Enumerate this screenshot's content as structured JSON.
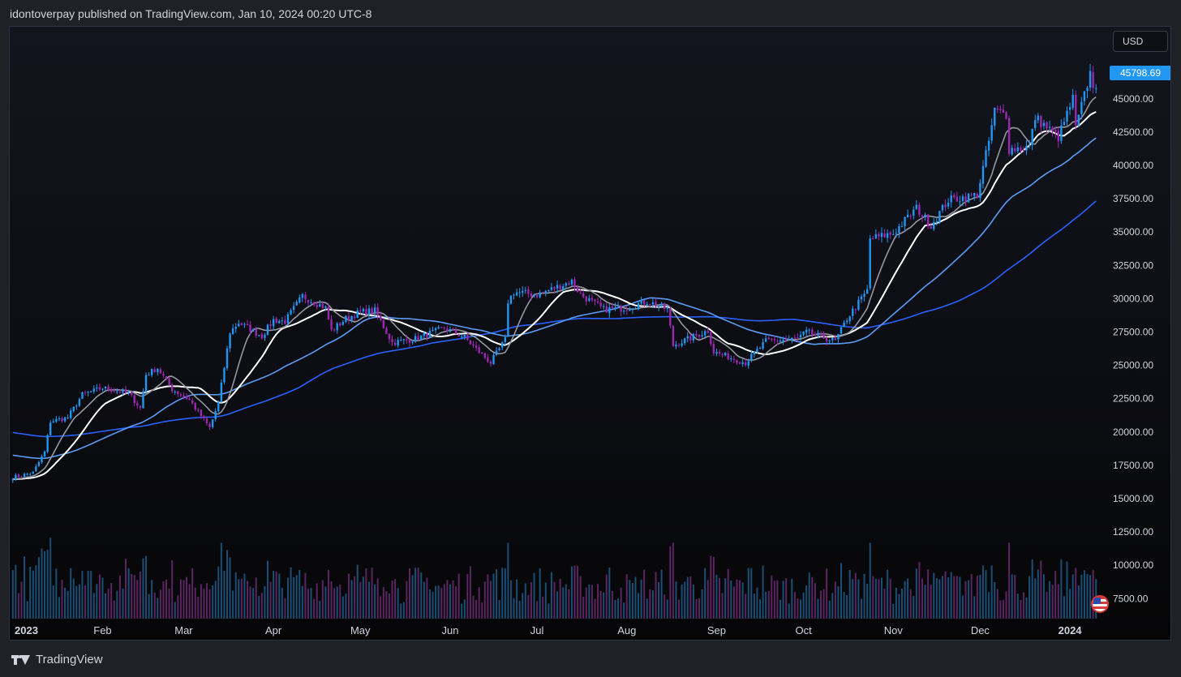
{
  "header": {
    "title": "idontoverpay published on TradingView.com, Jan 10, 2024 00:20 UTC-8"
  },
  "currency": "USD",
  "last_price": "45798.69",
  "footer": {
    "brand": "TradingView",
    "logo_icon": "tradingview-logo-icon"
  },
  "flag_icon": "us-flag-icon",
  "colors": {
    "up": "#2196f3",
    "down": "#9c27b0",
    "ma10": "#9598a1",
    "ma20": "#ffffff",
    "ma50": "#5b9cf6",
    "ma100": "#2962ff"
  },
  "chart_data": {
    "type": "candlestick",
    "x_axis": {
      "start_date": "2023-01-01",
      "end_date": "2024-01-10",
      "ticks": [
        {
          "label": "2023",
          "date": "2023-01-01",
          "bold": true
        },
        {
          "label": "Feb",
          "date": "2023-02-01"
        },
        {
          "label": "Mar",
          "date": "2023-03-01"
        },
        {
          "label": "Apr",
          "date": "2023-04-01"
        },
        {
          "label": "May",
          "date": "2023-05-01"
        },
        {
          "label": "Jun",
          "date": "2023-06-01"
        },
        {
          "label": "Jul",
          "date": "2023-07-01"
        },
        {
          "label": "Aug",
          "date": "2023-08-01"
        },
        {
          "label": "Sep",
          "date": "2023-09-01"
        },
        {
          "label": "Oct",
          "date": "2023-10-01"
        },
        {
          "label": "Nov",
          "date": "2023-11-01"
        },
        {
          "label": "Dec",
          "date": "2023-12-01"
        },
        {
          "label": "2024",
          "date": "2024-01-01",
          "bold": true
        }
      ]
    },
    "y_axis": {
      "min": 6000,
      "max": 50400,
      "ticks": [
        "7500.00",
        "10000.00",
        "12500.00",
        "15000.00",
        "17500.00",
        "20000.00",
        "22500.00",
        "25000.00",
        "27500.00",
        "30000.00",
        "32500.00",
        "35000.00",
        "37500.00",
        "40000.00",
        "42500.00",
        "45000.00"
      ]
    },
    "price_path": [
      [
        "2023-01-01",
        16600
      ],
      [
        "2023-01-08",
        16950
      ],
      [
        "2023-01-12",
        18500
      ],
      [
        "2023-01-14",
        20800
      ],
      [
        "2023-01-20",
        21100
      ],
      [
        "2023-01-25",
        22800
      ],
      [
        "2023-02-01",
        23300
      ],
      [
        "2023-02-10",
        22900
      ],
      [
        "2023-02-14",
        21800
      ],
      [
        "2023-02-16",
        24300
      ],
      [
        "2023-02-20",
        24800
      ],
      [
        "2023-02-25",
        23200
      ],
      [
        "2023-03-03",
        22400
      ],
      [
        "2023-03-10",
        20300
      ],
      [
        "2023-03-13",
        22200
      ],
      [
        "2023-03-17",
        27500
      ],
      [
        "2023-03-20",
        28200
      ],
      [
        "2023-03-28",
        27200
      ],
      [
        "2023-04-01",
        28400
      ],
      [
        "2023-04-05",
        28300
      ],
      [
        "2023-04-11",
        30200
      ],
      [
        "2023-04-19",
        29300
      ],
      [
        "2023-04-21",
        27600
      ],
      [
        "2023-04-26",
        28500
      ],
      [
        "2023-05-01",
        29000
      ],
      [
        "2023-05-06",
        29100
      ],
      [
        "2023-05-12",
        26700
      ],
      [
        "2023-05-20",
        27000
      ],
      [
        "2023-05-30",
        27800
      ],
      [
        "2023-06-06",
        27100
      ],
      [
        "2023-06-10",
        26200
      ],
      [
        "2023-06-15",
        25200
      ],
      [
        "2023-06-20",
        26900
      ],
      [
        "2023-06-21",
        29800
      ],
      [
        "2023-06-23",
        30500
      ],
      [
        "2023-07-01",
        30300
      ],
      [
        "2023-07-13",
        31300
      ],
      [
        "2023-07-16",
        30300
      ],
      [
        "2023-07-24",
        29200
      ],
      [
        "2023-08-01",
        29300
      ],
      [
        "2023-08-08",
        29800
      ],
      [
        "2023-08-15",
        29200
      ],
      [
        "2023-08-17",
        26500
      ],
      [
        "2023-08-29",
        27600
      ],
      [
        "2023-08-31",
        26000
      ],
      [
        "2023-09-11",
        25200
      ],
      [
        "2023-09-18",
        26800
      ],
      [
        "2023-09-29",
        27000
      ],
      [
        "2023-10-02",
        27500
      ],
      [
        "2023-10-12",
        26800
      ],
      [
        "2023-10-16",
        28500
      ],
      [
        "2023-10-20",
        29700
      ],
      [
        "2023-10-23",
        30600
      ],
      [
        "2023-10-24",
        34500
      ],
      [
        "2023-11-01",
        34900
      ],
      [
        "2023-11-09",
        36800
      ],
      [
        "2023-11-14",
        35500
      ],
      [
        "2023-11-20",
        37400
      ],
      [
        "2023-11-30",
        37800
      ],
      [
        "2023-12-04",
        41800
      ],
      [
        "2023-12-06",
        44100
      ],
      [
        "2023-12-10",
        43800
      ],
      [
        "2023-12-11",
        41200
      ],
      [
        "2023-12-18",
        41400
      ],
      [
        "2023-12-20",
        43600
      ],
      [
        "2023-12-28",
        42100
      ],
      [
        "2024-01-02",
        45000
      ],
      [
        "2024-01-03",
        42800
      ],
      [
        "2024-01-08",
        46900
      ],
      [
        "2024-01-09",
        46100
      ],
      [
        "2024-01-10",
        45800
      ]
    ],
    "moving_averages": [
      {
        "period": 10,
        "color": "#9598a1"
      },
      {
        "period": 20,
        "color": "#ffffff"
      },
      {
        "period": 50,
        "color": "#5b9cf6"
      },
      {
        "period": 100,
        "color": "#2962ff"
      }
    ],
    "ma_initial_values": {
      "50": 18300,
      "100": 20000
    }
  }
}
